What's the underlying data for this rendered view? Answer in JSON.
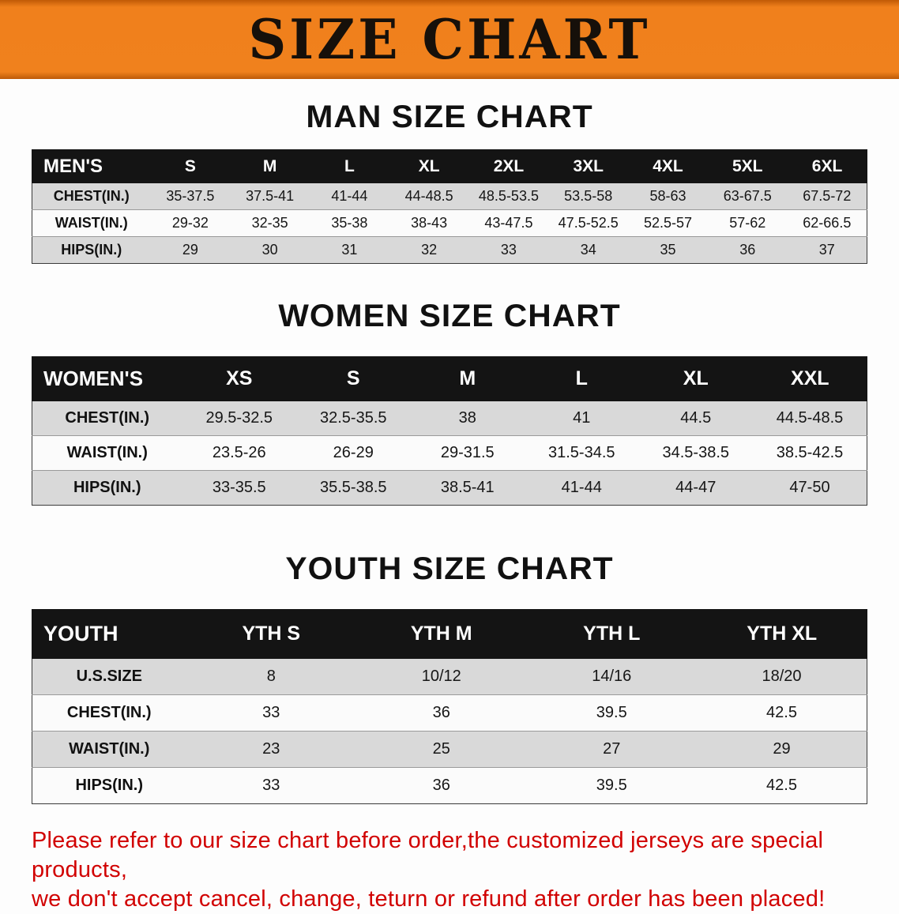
{
  "banner": {
    "title": "SIZE CHART",
    "bg_color": "#f0801c",
    "text_color": "#16100a"
  },
  "sections": [
    {
      "heading": "MAN SIZE CHART",
      "table": {
        "header": [
          "MEN'S",
          "S",
          "M",
          "L",
          "XL",
          "2XL",
          "3XL",
          "4XL",
          "5XL",
          "6XL"
        ],
        "rows": [
          [
            "CHEST(IN.)",
            "35-37.5",
            "37.5-41",
            "41-44",
            "44-48.5",
            "48.5-53.5",
            "53.5-58",
            "58-63",
            "63-67.5",
            "67.5-72"
          ],
          [
            "WAIST(IN.)",
            "29-32",
            "32-35",
            "35-38",
            "38-43",
            "43-47.5",
            "47.5-52.5",
            "52.5-57",
            "57-62",
            "62-66.5"
          ],
          [
            "HIPS(IN.)",
            "29",
            "30",
            "31",
            "32",
            "33",
            "34",
            "35",
            "36",
            "37"
          ]
        ]
      }
    },
    {
      "heading": "WOMEN SIZE CHART",
      "table": {
        "header": [
          "WOMEN'S",
          "XS",
          "S",
          "M",
          "L",
          "XL",
          "XXL"
        ],
        "rows": [
          [
            "CHEST(IN.)",
            "29.5-32.5",
            "32.5-35.5",
            "38",
            "41",
            "44.5",
            "44.5-48.5"
          ],
          [
            "WAIST(IN.)",
            "23.5-26",
            "26-29",
            "29-31.5",
            "31.5-34.5",
            "34.5-38.5",
            "38.5-42.5"
          ],
          [
            "HIPS(IN.)",
            "33-35.5",
            "35.5-38.5",
            "38.5-41",
            "41-44",
            "44-47",
            "47-50"
          ]
        ]
      }
    },
    {
      "heading": "YOUTH SIZE CHART",
      "table": {
        "header": [
          "YOUTH",
          "YTH S",
          "YTH M",
          "YTH L",
          "YTH XL"
        ],
        "rows": [
          [
            "U.S.SIZE",
            "8",
            "10/12",
            "14/16",
            "18/20"
          ],
          [
            "CHEST(IN.)",
            "33",
            "36",
            "39.5",
            "42.5"
          ],
          [
            "WAIST(IN.)",
            "23",
            "25",
            "27",
            "29"
          ],
          [
            "HIPS(IN.)",
            "33",
            "36",
            "39.5",
            "42.5"
          ]
        ]
      }
    }
  ],
  "disclaimer": {
    "line1": "Please refer to our size chart before order,the customized jerseys are special products,",
    "line2": "we don't accept cancel, change, teturn or refund after order has been placed!",
    "color": "#d10000"
  }
}
